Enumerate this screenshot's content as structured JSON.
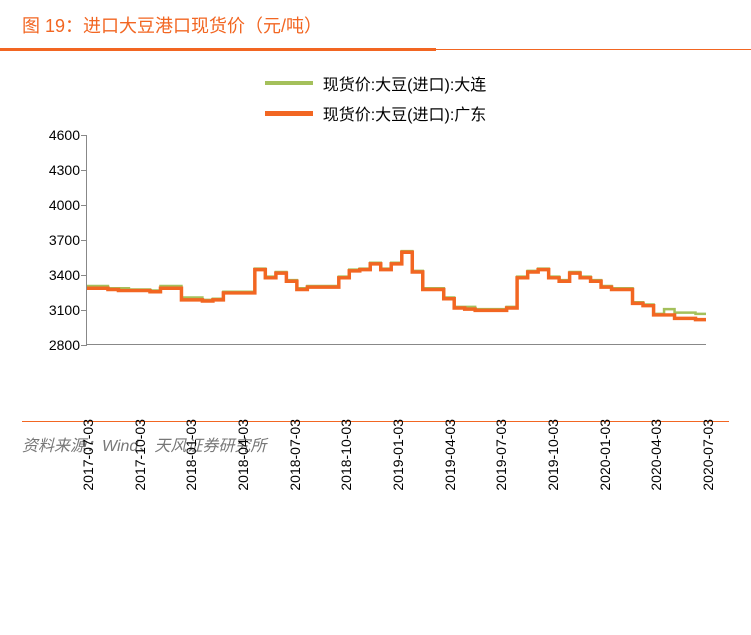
{
  "title": "图 19：进口大豆港口现货价（元/吨）",
  "source": "资料来源：Wind、天风证券研究所",
  "colors": {
    "accent": "#f26622",
    "series1": "#a4c05b",
    "series2": "#f26622",
    "axis": "#888888",
    "text": "#000000",
    "source_text": "#808080",
    "background": "#ffffff"
  },
  "legend": {
    "series1_label": "现货价:大豆(进口):大连",
    "series2_label": "现货价:大豆(进口):广东"
  },
  "chart": {
    "type": "line-step",
    "ylim": [
      2800,
      4600
    ],
    "ytick_step": 300,
    "yticks": [
      2800,
      3100,
      3400,
      3700,
      4000,
      4300,
      4600
    ],
    "line_width_s1": 2.5,
    "line_width_s2": 3.5,
    "x_labels": [
      "2017-07-03",
      "2017-10-03",
      "2018-01-03",
      "2018-04-03",
      "2018-07-03",
      "2018-10-03",
      "2019-01-03",
      "2019-04-03",
      "2019-07-03",
      "2019-10-03",
      "2020-01-03",
      "2020-04-03",
      "2020-07-03"
    ],
    "series1": {
      "name": "大连",
      "color": "#a4c05b",
      "values": [
        3300,
        3300,
        3280,
        3280,
        3270,
        3270,
        3260,
        3300,
        3300,
        3200,
        3200,
        3180,
        3190,
        3250,
        3250,
        3250,
        3450,
        3380,
        3420,
        3350,
        3280,
        3300,
        3300,
        3300,
        3380,
        3440,
        3450,
        3500,
        3450,
        3500,
        3600,
        3430,
        3280,
        3280,
        3200,
        3120,
        3120,
        3100,
        3100,
        3100,
        3120,
        3380,
        3430,
        3450,
        3380,
        3350,
        3420,
        3380,
        3350,
        3300,
        3280,
        3280,
        3160,
        3140,
        3060,
        3100,
        3070,
        3070,
        3060,
        3060
      ]
    },
    "series2": {
      "name": "广东",
      "color": "#f26622",
      "values": [
        3280,
        3280,
        3270,
        3260,
        3260,
        3260,
        3250,
        3280,
        3280,
        3180,
        3180,
        3170,
        3180,
        3240,
        3240,
        3240,
        3440,
        3370,
        3410,
        3340,
        3270,
        3290,
        3290,
        3290,
        3370,
        3430,
        3440,
        3490,
        3440,
        3490,
        3590,
        3420,
        3270,
        3270,
        3190,
        3110,
        3100,
        3090,
        3090,
        3090,
        3110,
        3370,
        3420,
        3440,
        3370,
        3340,
        3410,
        3370,
        3340,
        3290,
        3270,
        3270,
        3150,
        3130,
        3050,
        3050,
        3020,
        3020,
        3010,
        3010
      ]
    }
  }
}
